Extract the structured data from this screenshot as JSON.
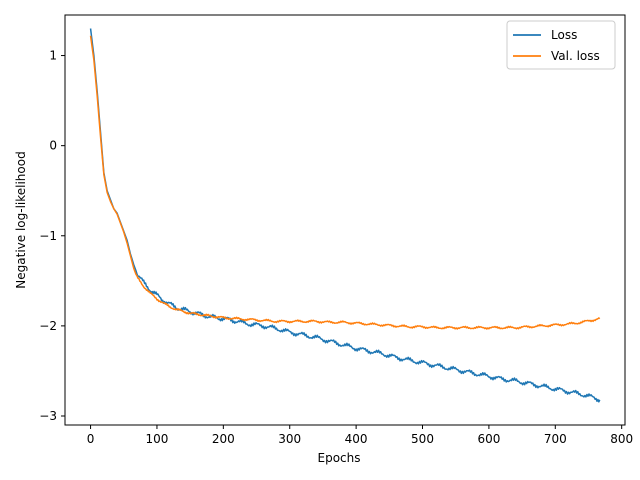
{
  "chart_data": {
    "type": "line",
    "title": "",
    "xlabel": "Epochs",
    "ylabel": "Negative log-likelihood",
    "xlim": [
      -38.5,
      805
    ],
    "ylim": [
      -3.1,
      1.45
    ],
    "xticks": [
      0,
      100,
      200,
      300,
      400,
      500,
      600,
      700,
      800
    ],
    "yticks": [
      -3,
      -2,
      -1,
      0,
      1
    ],
    "grid": false,
    "legend_position": "top-right",
    "series": [
      {
        "name": "Loss",
        "color": "#1f77b4",
        "points": [
          [
            0,
            1.3
          ],
          [
            5,
            1.0
          ],
          [
            10,
            0.6
          ],
          [
            15,
            0.15
          ],
          [
            20,
            -0.3
          ],
          [
            25,
            -0.5
          ],
          [
            30,
            -0.6
          ],
          [
            35,
            -0.7
          ],
          [
            40,
            -0.75
          ],
          [
            45,
            -0.85
          ],
          [
            50,
            -0.95
          ],
          [
            55,
            -1.05
          ],
          [
            60,
            -1.2
          ],
          [
            65,
            -1.32
          ],
          [
            70,
            -1.42
          ],
          [
            80,
            -1.52
          ],
          [
            90,
            -1.6
          ],
          [
            100,
            -1.66
          ],
          [
            110,
            -1.72
          ],
          [
            120,
            -1.76
          ],
          [
            130,
            -1.8
          ],
          [
            140,
            -1.82
          ],
          [
            150,
            -1.84
          ],
          [
            160,
            -1.86
          ],
          [
            170,
            -1.88
          ],
          [
            180,
            -1.9
          ],
          [
            190,
            -1.91
          ],
          [
            200,
            -1.92
          ],
          [
            210,
            -1.93
          ],
          [
            220,
            -1.95
          ],
          [
            240,
            -1.98
          ],
          [
            260,
            -2.0
          ],
          [
            280,
            -2.03
          ],
          [
            300,
            -2.07
          ],
          [
            320,
            -2.1
          ],
          [
            340,
            -2.13
          ],
          [
            360,
            -2.17
          ],
          [
            380,
            -2.21
          ],
          [
            400,
            -2.25
          ],
          [
            420,
            -2.28
          ],
          [
            440,
            -2.31
          ],
          [
            460,
            -2.35
          ],
          [
            480,
            -2.38
          ],
          [
            500,
            -2.41
          ],
          [
            520,
            -2.44
          ],
          [
            540,
            -2.47
          ],
          [
            560,
            -2.5
          ],
          [
            580,
            -2.53
          ],
          [
            600,
            -2.56
          ],
          [
            620,
            -2.59
          ],
          [
            640,
            -2.61
          ],
          [
            660,
            -2.64
          ],
          [
            680,
            -2.67
          ],
          [
            700,
            -2.7
          ],
          [
            720,
            -2.73
          ],
          [
            740,
            -2.76
          ],
          [
            760,
            -2.8
          ],
          [
            767,
            -2.82
          ]
        ]
      },
      {
        "name": "Val. loss",
        "color": "#ff7f0e",
        "points": [
          [
            0,
            1.22
          ],
          [
            5,
            0.95
          ],
          [
            10,
            0.55
          ],
          [
            15,
            0.1
          ],
          [
            20,
            -0.32
          ],
          [
            25,
            -0.52
          ],
          [
            30,
            -0.62
          ],
          [
            35,
            -0.7
          ],
          [
            40,
            -0.76
          ],
          [
            45,
            -0.86
          ],
          [
            50,
            -0.96
          ],
          [
            55,
            -1.08
          ],
          [
            60,
            -1.22
          ],
          [
            65,
            -1.36
          ],
          [
            70,
            -1.46
          ],
          [
            80,
            -1.56
          ],
          [
            90,
            -1.64
          ],
          [
            100,
            -1.7
          ],
          [
            110,
            -1.75
          ],
          [
            120,
            -1.79
          ],
          [
            130,
            -1.82
          ],
          [
            140,
            -1.84
          ],
          [
            150,
            -1.86
          ],
          [
            160,
            -1.87
          ],
          [
            170,
            -1.88
          ],
          [
            180,
            -1.89
          ],
          [
            190,
            -1.9
          ],
          [
            200,
            -1.91
          ],
          [
            220,
            -1.92
          ],
          [
            240,
            -1.93
          ],
          [
            260,
            -1.94
          ],
          [
            280,
            -1.95
          ],
          [
            300,
            -1.95
          ],
          [
            320,
            -1.95
          ],
          [
            340,
            -1.95
          ],
          [
            360,
            -1.96
          ],
          [
            380,
            -1.96
          ],
          [
            400,
            -1.97
          ],
          [
            420,
            -1.98
          ],
          [
            440,
            -1.99
          ],
          [
            460,
            -2.0
          ],
          [
            480,
            -2.01
          ],
          [
            500,
            -2.01
          ],
          [
            520,
            -2.02
          ],
          [
            540,
            -2.02
          ],
          [
            560,
            -2.02
          ],
          [
            580,
            -2.02
          ],
          [
            600,
            -2.02
          ],
          [
            620,
            -2.02
          ],
          [
            640,
            -2.02
          ],
          [
            660,
            -2.01
          ],
          [
            680,
            -2.0
          ],
          [
            700,
            -1.99
          ],
          [
            720,
            -1.98
          ],
          [
            740,
            -1.96
          ],
          [
            760,
            -1.93
          ],
          [
            767,
            -1.92
          ]
        ]
      }
    ]
  }
}
